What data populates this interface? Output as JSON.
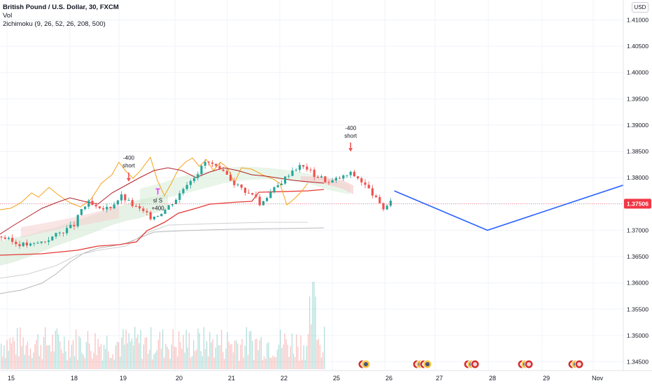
{
  "header": {
    "symbol_line": "British Pound / U.S. Dollar, 30, FXCM",
    "indicator_vol": "Vol",
    "indicator_ichimoku": "2ichimoku (9, 26, 52, 26, 208, 500)",
    "currency": "USD"
  },
  "colors": {
    "up_candle": "#26a69a",
    "down_candle": "#ef5350",
    "projection": "#2962ff",
    "price_tag": "#f23645",
    "conversion_line": "#f7a21b",
    "base_line": "#b2202a",
    "long_base_line": "#e53935",
    "slow_line": "#b8b8b8",
    "cloud_bull": "#cfe8cf",
    "cloud_bear": "#f5cfcf"
  },
  "chart_data": {
    "type": "line",
    "title": "British Pound / U.S. Dollar, 30, FXCM",
    "ylim": [
      1.343,
      1.4125
    ],
    "y_ticks": [
      "1.41000",
      "1.40500",
      "1.40000",
      "1.39500",
      "1.39000",
      "1.38500",
      "1.38000",
      "1.37500",
      "1.37000",
      "1.36500",
      "1.36000",
      "1.35500",
      "1.35000",
      "1.34500"
    ],
    "x_ticks": [
      "15",
      "18",
      "19",
      "20",
      "21",
      "22",
      "25",
      "26",
      "27",
      "28",
      "29",
      "Nov"
    ],
    "last_price": "1.37506",
    "price_series": [
      [
        0,
        1.3688
      ],
      [
        4,
        1.3675
      ],
      [
        8,
        1.3672
      ],
      [
        12,
        1.368
      ],
      [
        16,
        1.3695
      ],
      [
        20,
        1.371
      ],
      [
        22,
        1.374
      ],
      [
        24,
        1.3752
      ],
      [
        27,
        1.3738
      ],
      [
        30,
        1.3745
      ],
      [
        33,
        1.3765
      ],
      [
        36,
        1.3748
      ],
      [
        39,
        1.3735
      ],
      [
        41,
        1.3725
      ],
      [
        43,
        1.373
      ],
      [
        45,
        1.374
      ],
      [
        48,
        1.376
      ],
      [
        51,
        1.379
      ],
      [
        54,
        1.381
      ],
      [
        56,
        1.383
      ],
      [
        58,
        1.3825
      ],
      [
        60,
        1.3812
      ],
      [
        62,
        1.3805
      ],
      [
        64,
        1.379
      ],
      [
        66,
        1.378
      ],
      [
        68,
        1.377
      ],
      [
        70,
        1.3765
      ],
      [
        71,
        1.3748
      ],
      [
        72,
        1.3758
      ],
      [
        74,
        1.3772
      ],
      [
        76,
        1.3785
      ],
      [
        78,
        1.38
      ],
      [
        80,
        1.3815
      ],
      [
        82,
        1.3822
      ],
      [
        84,
        1.3818
      ],
      [
        86,
        1.3805
      ],
      [
        88,
        1.38
      ],
      [
        90,
        1.379
      ],
      [
        92,
        1.3797
      ],
      [
        94,
        1.3802
      ],
      [
        96,
        1.3808
      ],
      [
        98,
        1.38
      ],
      [
        100,
        1.3785
      ],
      [
        102,
        1.377
      ],
      [
        104,
        1.3748
      ],
      [
        105,
        1.3742
      ],
      [
        107,
        1.3752
      ],
      [
        108,
        1.3748
      ]
    ],
    "projection": [
      [
        108,
        1.3775
      ],
      [
        126,
        1.37
      ],
      [
        155,
        1.3795
      ]
    ],
    "annotations": [
      {
        "label": "-400",
        "label2": "short",
        "x": 35,
        "price": 1.3778,
        "marker": "down-arrow"
      },
      {
        "label": "-400",
        "label2": "short",
        "x": 96,
        "price": 1.3835,
        "marker": "down-arrow"
      },
      {
        "label": "sl S",
        "label2": "+400",
        "x": 43,
        "price": 1.3752,
        "marker": "exit"
      }
    ],
    "events": [
      "flag-row-25-26",
      "flag-row-26-27",
      "flag-row-27-28",
      "flag-row-28-29",
      "flag-row-29-nov"
    ]
  }
}
